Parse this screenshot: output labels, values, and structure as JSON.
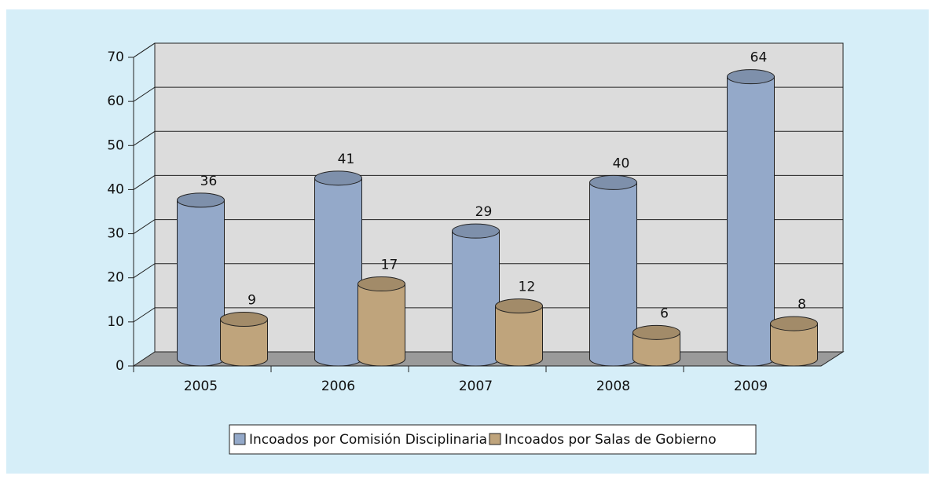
{
  "chart_data": {
    "type": "bar3d",
    "categories": [
      "2005",
      "2006",
      "2007",
      "2008",
      "2009"
    ],
    "series": [
      {
        "name": "Incoados por Comisión Disciplinaria",
        "color": "#94a9c9",
        "values": [
          36,
          41,
          29,
          40,
          64
        ]
      },
      {
        "name": "Incoados por Salas de Gobierno",
        "color": "#bfa47c",
        "values": [
          9,
          17,
          12,
          6,
          8
        ]
      }
    ],
    "ylim": [
      0,
      70
    ],
    "yticks": [
      0,
      10,
      20,
      30,
      40,
      50,
      60,
      70
    ],
    "grid": true,
    "legend": "bottom"
  }
}
